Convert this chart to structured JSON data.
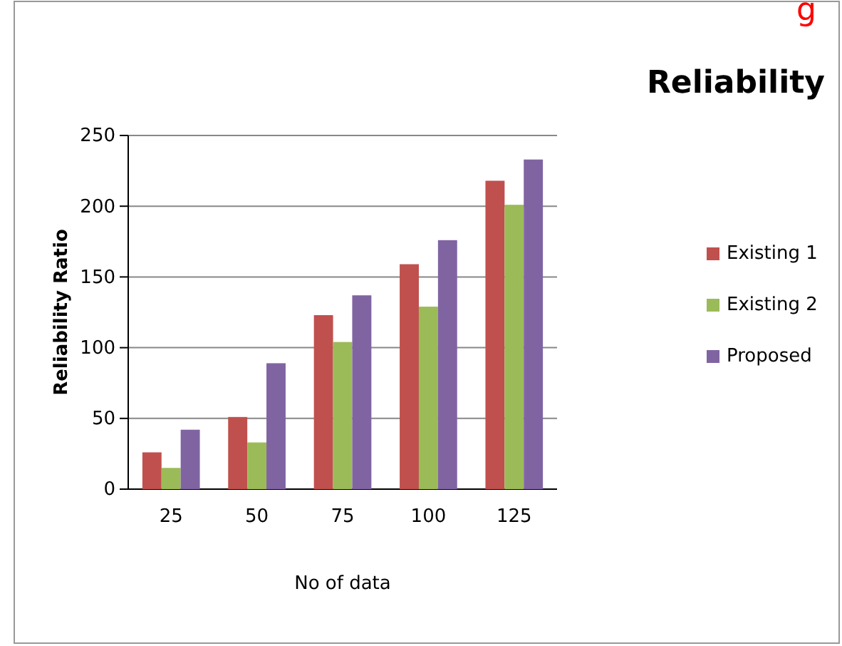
{
  "chart_data": {
    "type": "bar",
    "title": "Reliability",
    "xlabel": "No of data",
    "ylabel": "Reliability Ratio",
    "annotations": [
      "g"
    ],
    "categories": [
      "25",
      "50",
      "75",
      "100",
      "125"
    ],
    "series": [
      {
        "name": "Existing 1",
        "color": "#c0504d",
        "values": [
          26,
          51,
          123,
          159,
          218
        ]
      },
      {
        "name": "Existing 2",
        "color": "#9bbb59",
        "values": [
          15,
          33,
          104,
          129,
          201
        ]
      },
      {
        "name": "Proposed",
        "color": "#8064a2",
        "values": [
          42,
          89,
          137,
          176,
          233
        ]
      }
    ],
    "ylim": [
      0,
      250
    ],
    "yticks": [
      0,
      50,
      100,
      150,
      200,
      250
    ],
    "grid": "y",
    "legend": "right"
  }
}
